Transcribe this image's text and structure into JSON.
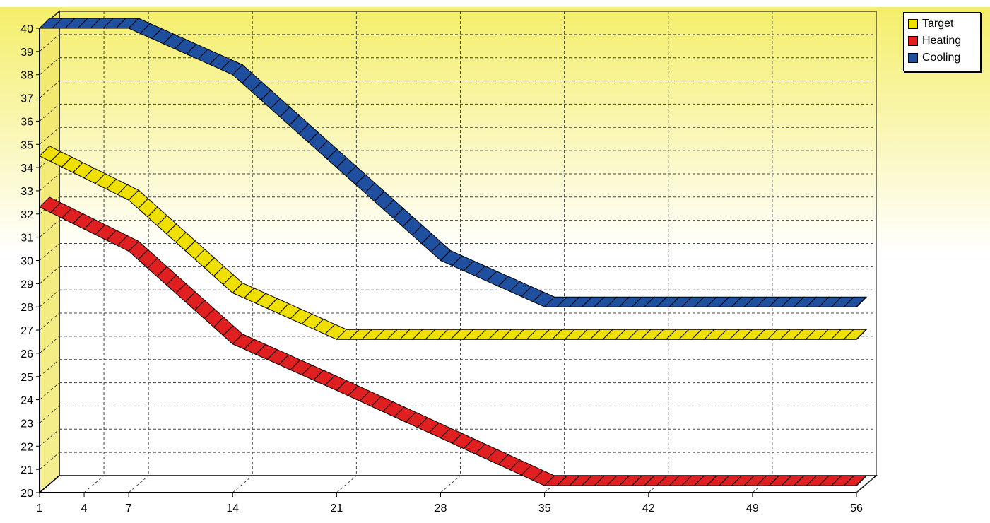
{
  "chart_data": {
    "type": "line",
    "x": [
      1,
      7,
      14,
      21,
      28,
      35,
      56
    ],
    "xticks": [
      "1",
      "4",
      "7",
      "14",
      "21",
      "28",
      "35",
      "42",
      "49",
      "56"
    ],
    "xtick_values": [
      1,
      4,
      7,
      14,
      21,
      28,
      35,
      42,
      49,
      56
    ],
    "yticks": [
      "20",
      "21",
      "22",
      "23",
      "24",
      "25",
      "26",
      "27",
      "28",
      "29",
      "30",
      "31",
      "32",
      "33",
      "34",
      "35",
      "36",
      "37",
      "38",
      "39",
      "40"
    ],
    "ylim": [
      20,
      40
    ],
    "xlim": [
      1,
      56
    ],
    "grid": true,
    "legend_position": "top-right",
    "series": [
      {
        "name": "Target",
        "color": "#f0e000",
        "x": [
          1,
          7,
          14,
          21,
          56
        ],
        "values": [
          34.5,
          32.6,
          28.6,
          26.6,
          26.6
        ]
      },
      {
        "name": "Heating",
        "color": "#e02020",
        "x": [
          1,
          7,
          14,
          21,
          35,
          56
        ],
        "values": [
          32.3,
          30.4,
          26.4,
          24.4,
          20.3,
          20.3
        ]
      },
      {
        "name": "Cooling",
        "color": "#1f4f9f",
        "x": [
          1,
          7,
          14,
          28,
          35,
          56
        ],
        "values": [
          40,
          40,
          38,
          30,
          28,
          28
        ]
      }
    ]
  }
}
